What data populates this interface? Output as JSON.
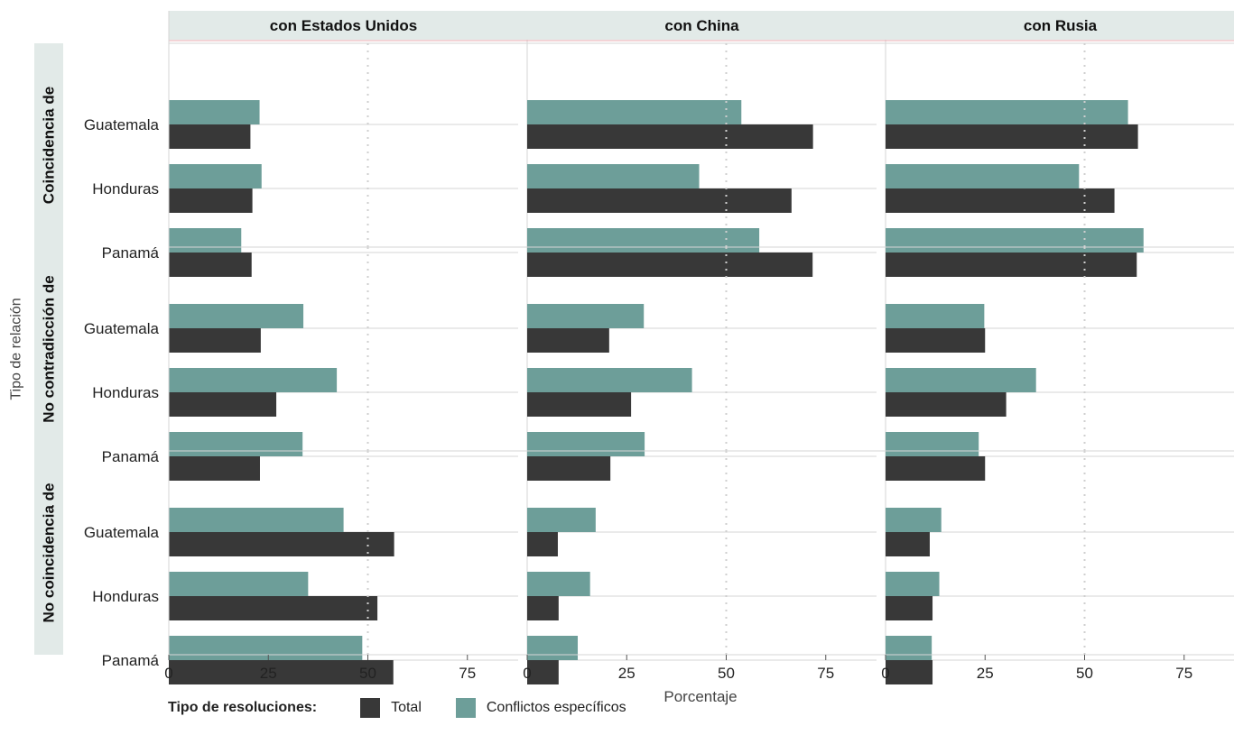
{
  "colors": {
    "total": "#383838",
    "specific": "#6d9e99",
    "strip": "#e2eae8",
    "grid": "#d6d6d6",
    "refline": "#cfcfcf"
  },
  "chart_data": {
    "type": "bar",
    "orientation": "horizontal",
    "xlabel": "Porcentaje",
    "ylabel": "Tipo de relación",
    "xlim": [
      0,
      85
    ],
    "xticks": [
      "0",
      "25",
      "50",
      "75"
    ],
    "reference_line": 50,
    "columns": [
      "con Estados Unidos",
      "con China",
      "con Rusia"
    ],
    "rows": [
      "Coincidencia de",
      "No contradicción de",
      "No coincidencia de"
    ],
    "categories": [
      "Guatemala",
      "Honduras",
      "Panamá"
    ],
    "series_names": [
      "Total",
      "Conflictos específicos"
    ],
    "panels": [
      {
        "column": "con Estados Unidos",
        "row": "Coincidencia de",
        "total": [
          20.5,
          21.0,
          20.8
        ],
        "specific": [
          22.8,
          23.3,
          18.2
        ]
      },
      {
        "column": "con China",
        "row": "Coincidencia de",
        "total": [
          71.8,
          66.4,
          71.7
        ],
        "specific": [
          53.8,
          43.2,
          58.3
        ]
      },
      {
        "column": "con Rusia",
        "row": "Coincidencia de",
        "total": [
          63.4,
          57.5,
          63.1
        ],
        "specific": [
          60.9,
          48.6,
          64.8
        ]
      },
      {
        "column": "con Estados Unidos",
        "row": "No contradicción de",
        "total": [
          23.1,
          27.0,
          22.9
        ],
        "specific": [
          33.8,
          42.2,
          33.6
        ]
      },
      {
        "column": "con China",
        "row": "No contradicción de",
        "total": [
          20.6,
          26.1,
          20.9
        ],
        "specific": [
          29.3,
          41.4,
          29.5
        ]
      },
      {
        "column": "con Rusia",
        "row": "No contradicción de",
        "total": [
          25.0,
          30.3,
          25.0
        ],
        "specific": [
          24.8,
          37.8,
          23.4
        ]
      },
      {
        "column": "con Estados Unidos",
        "row": "No coincidencia de",
        "total": [
          56.6,
          52.4,
          56.4
        ],
        "specific": [
          43.9,
          35.0,
          48.6
        ]
      },
      {
        "column": "con China",
        "row": "No coincidencia de",
        "total": [
          7.7,
          7.9,
          7.9
        ],
        "specific": [
          17.2,
          15.8,
          12.7
        ]
      },
      {
        "column": "con Rusia",
        "row": "No coincidencia de",
        "total": [
          11.1,
          11.8,
          11.8
        ],
        "specific": [
          14.0,
          13.5,
          11.6
        ]
      }
    ]
  },
  "legend": {
    "title": "Tipo de resoluciones:",
    "total_label": "Total",
    "specific_label": "Conflictos específicos"
  }
}
